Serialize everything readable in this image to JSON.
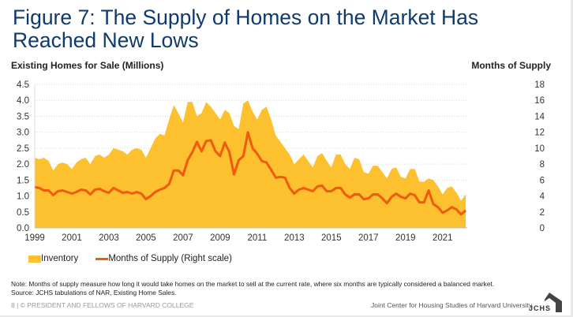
{
  "title": "Figure 7: The Supply of Homes on the Market Has Reached New Lows",
  "left_axis_title": "Existing Homes for Sale (Millions)",
  "right_axis_title": "Months of Supply",
  "legend": {
    "inventory": "Inventory",
    "months": "Months of Supply (Right scale)"
  },
  "note": "Note: Months of supply measure how long it would take homes on the market to sell at the current rate, where six months are typically considered a balanced market.",
  "source": "Source: JCHS tabulations of NAR, Existing Home Sales.",
  "footer_left": "8 | © PRESIDENT AND FELLOWS OF HARVARD COLLEGE",
  "footer_right": "Joint Center for Housing Studies of Harvard University",
  "logo_text": "JCHS",
  "colors": {
    "inventory": "#fdc02f",
    "months": "#f05a0a",
    "title": "#0e3a6e"
  },
  "chart_data": {
    "type": "area",
    "title": "Figure 7: The Supply of Homes on the Market Has Reached New Lows",
    "xlabel": "",
    "ylabel": "Existing Homes for Sale (Millions)",
    "y2label": "Months of Supply",
    "xlim": [
      1999.0,
      2022.33
    ],
    "ylim": [
      0,
      4.5
    ],
    "y2lim": [
      0,
      18
    ],
    "yticks": [
      "0.0",
      "0.5",
      "1.0",
      "1.5",
      "2.0",
      "2.5",
      "3.0",
      "3.5",
      "4.0",
      "4.5"
    ],
    "y2ticks": [
      "0",
      "2",
      "4",
      "6",
      "8",
      "10",
      "12",
      "14",
      "16",
      "18"
    ],
    "xticks": [
      "1999",
      "2001",
      "2003",
      "2005",
      "2007",
      "2009",
      "2011",
      "2013",
      "2015",
      "2017",
      "2019",
      "2021"
    ],
    "grid": true,
    "legend_position": "bottom-left",
    "series": [
      {
        "name": "Inventory",
        "type": "area",
        "axis": "left",
        "x": [
          1999.0,
          1999.25,
          1999.5,
          1999.75,
          2000.0,
          2000.25,
          2000.5,
          2000.75,
          2001.0,
          2001.25,
          2001.5,
          2001.75,
          2002.0,
          2002.25,
          2002.5,
          2002.75,
          2003.0,
          2003.25,
          2003.5,
          2003.75,
          2004.0,
          2004.25,
          2004.5,
          2004.75,
          2005.0,
          2005.25,
          2005.5,
          2005.75,
          2006.0,
          2006.25,
          2006.5,
          2006.75,
          2007.0,
          2007.25,
          2007.5,
          2007.75,
          2008.0,
          2008.25,
          2008.5,
          2008.75,
          2009.0,
          2009.25,
          2009.5,
          2009.75,
          2010.0,
          2010.25,
          2010.5,
          2010.75,
          2011.0,
          2011.25,
          2011.5,
          2011.75,
          2012.0,
          2012.25,
          2012.5,
          2012.75,
          2013.0,
          2013.25,
          2013.5,
          2013.75,
          2014.0,
          2014.25,
          2014.5,
          2014.75,
          2015.0,
          2015.25,
          2015.5,
          2015.75,
          2016.0,
          2016.25,
          2016.5,
          2016.75,
          2017.0,
          2017.25,
          2017.5,
          2017.75,
          2018.0,
          2018.25,
          2018.5,
          2018.75,
          2019.0,
          2019.25,
          2019.5,
          2019.75,
          2020.0,
          2020.25,
          2020.5,
          2020.75,
          2021.0,
          2021.25,
          2021.5,
          2021.75,
          2022.0,
          2022.25
        ],
        "values": [
          2.2,
          2.15,
          2.2,
          2.1,
          1.8,
          2.0,
          2.05,
          2.0,
          1.85,
          2.05,
          2.15,
          2.2,
          2.0,
          2.25,
          2.3,
          2.2,
          2.3,
          2.5,
          2.45,
          2.4,
          2.3,
          2.45,
          2.5,
          2.45,
          2.2,
          2.5,
          2.8,
          2.95,
          2.9,
          3.4,
          3.85,
          3.6,
          3.3,
          3.95,
          3.95,
          3.5,
          3.6,
          3.95,
          3.8,
          3.6,
          3.4,
          3.7,
          3.6,
          3.2,
          3.1,
          3.9,
          4.0,
          3.65,
          3.4,
          3.7,
          3.8,
          3.4,
          2.9,
          2.7,
          2.5,
          2.3,
          2.0,
          2.15,
          2.3,
          2.1,
          1.9,
          2.25,
          2.35,
          2.1,
          1.9,
          2.3,
          2.3,
          2.0,
          1.85,
          2.2,
          2.15,
          1.75,
          1.7,
          1.95,
          1.95,
          1.75,
          1.55,
          1.85,
          1.9,
          1.6,
          1.55,
          1.85,
          1.85,
          1.45,
          1.45,
          1.55,
          1.5,
          1.3,
          1.05,
          1.25,
          1.3,
          1.1,
          0.85,
          1.05
        ]
      },
      {
        "name": "Months of Supply (Right scale)",
        "type": "line",
        "axis": "right",
        "x": [
          1999.0,
          1999.25,
          1999.5,
          1999.75,
          2000.0,
          2000.25,
          2000.5,
          2000.75,
          2001.0,
          2001.25,
          2001.5,
          2001.75,
          2002.0,
          2002.25,
          2002.5,
          2002.75,
          2003.0,
          2003.25,
          2003.5,
          2003.75,
          2004.0,
          2004.25,
          2004.5,
          2004.75,
          2005.0,
          2005.25,
          2005.5,
          2005.75,
          2006.0,
          2006.25,
          2006.5,
          2006.75,
          2007.0,
          2007.25,
          2007.5,
          2007.75,
          2008.0,
          2008.25,
          2008.5,
          2008.75,
          2009.0,
          2009.25,
          2009.5,
          2009.75,
          2010.0,
          2010.25,
          2010.5,
          2010.75,
          2011.0,
          2011.25,
          2011.5,
          2011.75,
          2012.0,
          2012.25,
          2012.5,
          2012.75,
          2013.0,
          2013.25,
          2013.5,
          2013.75,
          2014.0,
          2014.25,
          2014.5,
          2014.75,
          2015.0,
          2015.25,
          2015.5,
          2015.75,
          2016.0,
          2016.25,
          2016.5,
          2016.75,
          2017.0,
          2017.25,
          2017.5,
          2017.75,
          2018.0,
          2018.25,
          2018.5,
          2018.75,
          2019.0,
          2019.25,
          2019.5,
          2019.75,
          2020.0,
          2020.25,
          2020.5,
          2020.75,
          2021.0,
          2021.25,
          2021.5,
          2021.75,
          2022.0,
          2022.25
        ],
        "values": [
          5.1,
          5.0,
          4.7,
          4.7,
          4.1,
          4.6,
          4.7,
          4.5,
          4.3,
          4.5,
          4.8,
          4.7,
          4.2,
          4.8,
          4.9,
          4.6,
          4.4,
          5.0,
          4.7,
          4.4,
          4.5,
          4.3,
          4.5,
          4.3,
          3.6,
          4.0,
          4.5,
          4.8,
          5.0,
          5.5,
          7.2,
          7.2,
          6.6,
          8.5,
          9.5,
          10.8,
          9.6,
          10.9,
          11.0,
          9.6,
          9.0,
          10.7,
          9.5,
          6.7,
          8.5,
          9.0,
          12.0,
          10.0,
          9.3,
          8.4,
          8.2,
          7.3,
          6.3,
          6.4,
          6.3,
          5.0,
          4.3,
          4.8,
          5.0,
          4.8,
          4.6,
          5.2,
          5.3,
          4.6,
          4.6,
          5.0,
          5.0,
          4.2,
          3.8,
          4.2,
          4.2,
          3.6,
          3.7,
          4.2,
          4.2,
          3.7,
          3.1,
          3.9,
          4.3,
          3.9,
          3.7,
          4.3,
          4.1,
          3.2,
          3.2,
          4.7,
          3.0,
          2.6,
          1.9,
          2.2,
          2.6,
          2.3,
          1.7,
          2.2
        ]
      }
    ]
  }
}
